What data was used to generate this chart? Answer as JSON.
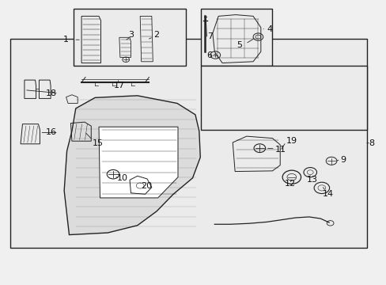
{
  "bg_color": "#f0f0f0",
  "line_color": "#222222",
  "text_color": "#111111",
  "figsize": [
    4.89,
    3.6
  ],
  "dpi": 100
}
